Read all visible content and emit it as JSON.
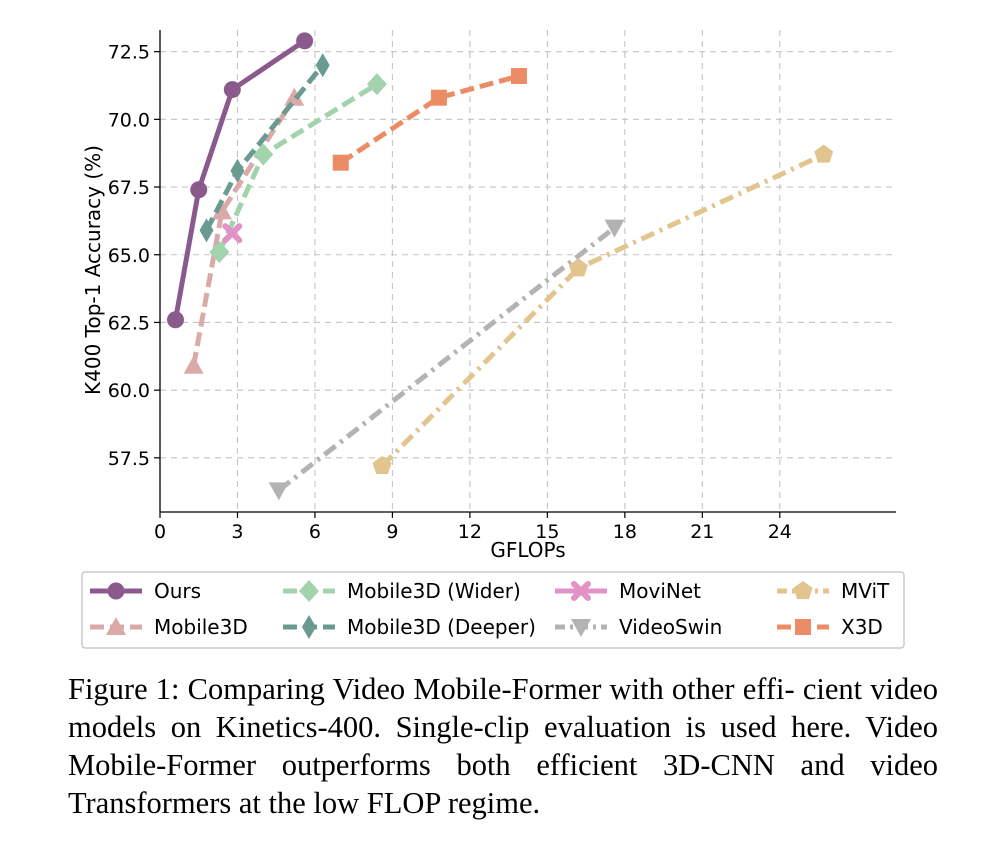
{
  "chart_data": {
    "type": "line",
    "xlabel": "GFLOPs",
    "ylabel": "K400 Top-1 Accuracy (%)",
    "xlim": [
      0,
      28.5
    ],
    "ylim": [
      55.5,
      73.3
    ],
    "xticks": [
      0,
      3,
      6,
      9,
      12,
      15,
      18,
      21,
      24
    ],
    "xtick_labels": [
      "0",
      "3",
      "6",
      "9",
      "12",
      "15",
      "18",
      "21",
      "24"
    ],
    "yticks": [
      57.5,
      60.0,
      62.5,
      65.0,
      67.5,
      70.0,
      72.5
    ],
    "ytick_labels": [
      "57.5",
      "60.0",
      "62.5",
      "65.0",
      "67.5",
      "70.0",
      "72.5"
    ],
    "grid": true,
    "legend_position": "below",
    "series": [
      {
        "name": "Ours",
        "color": "#8b5a8c",
        "marker": "circle",
        "dash": "solid",
        "x": [
          0.6,
          1.5,
          2.8,
          5.6
        ],
        "y": [
          62.6,
          67.4,
          71.1,
          72.9
        ]
      },
      {
        "name": "Mobile3D",
        "color": "#d9aaa8",
        "marker": "triangle-up",
        "dash": "dashed",
        "x": [
          1.3,
          2.4,
          5.2
        ],
        "y": [
          60.9,
          66.6,
          70.8
        ]
      },
      {
        "name": "Mobile3D (Wider)",
        "color": "#a3d3ad",
        "marker": "diamond",
        "dash": "dashed",
        "x": [
          2.3,
          4.0,
          8.4
        ],
        "y": [
          65.1,
          68.7,
          71.3
        ]
      },
      {
        "name": "Mobile3D (Deeper)",
        "color": "#6b9a90",
        "marker": "diamond-thin",
        "dash": "dashed",
        "x": [
          1.8,
          3.0,
          6.3
        ],
        "y": [
          65.9,
          68.1,
          72.0
        ]
      },
      {
        "name": "MoviNet",
        "color": "#e292c7",
        "marker": "x",
        "dash": "solid",
        "x": [
          2.8
        ],
        "y": [
          65.8
        ]
      },
      {
        "name": "VideoSwin",
        "color": "#b3b3b3",
        "marker": "triangle-down",
        "dash": "dashdot",
        "x": [
          4.6,
          17.6
        ],
        "y": [
          56.3,
          66.0
        ]
      },
      {
        "name": "MViT",
        "color": "#e2c48f",
        "marker": "pentagon",
        "dash": "dashdot",
        "x": [
          8.6,
          16.2,
          25.7
        ],
        "y": [
          57.2,
          64.5,
          68.7
        ]
      },
      {
        "name": "X3D",
        "color": "#ec8c65",
        "marker": "square",
        "dash": "dashed",
        "x": [
          7.0,
          10.8,
          13.9
        ],
        "y": [
          68.4,
          70.8,
          71.6
        ]
      }
    ]
  },
  "caption": {
    "lines": [
      "Figure 1: Comparing Video Mobile-Former with other effi-",
      "cient video models on Kinetics-400. Single-clip evaluation is",
      "used here. Video Mobile-Former outperforms both efficient",
      "3D-CNN and video Transformers at the low FLOP regime."
    ]
  }
}
